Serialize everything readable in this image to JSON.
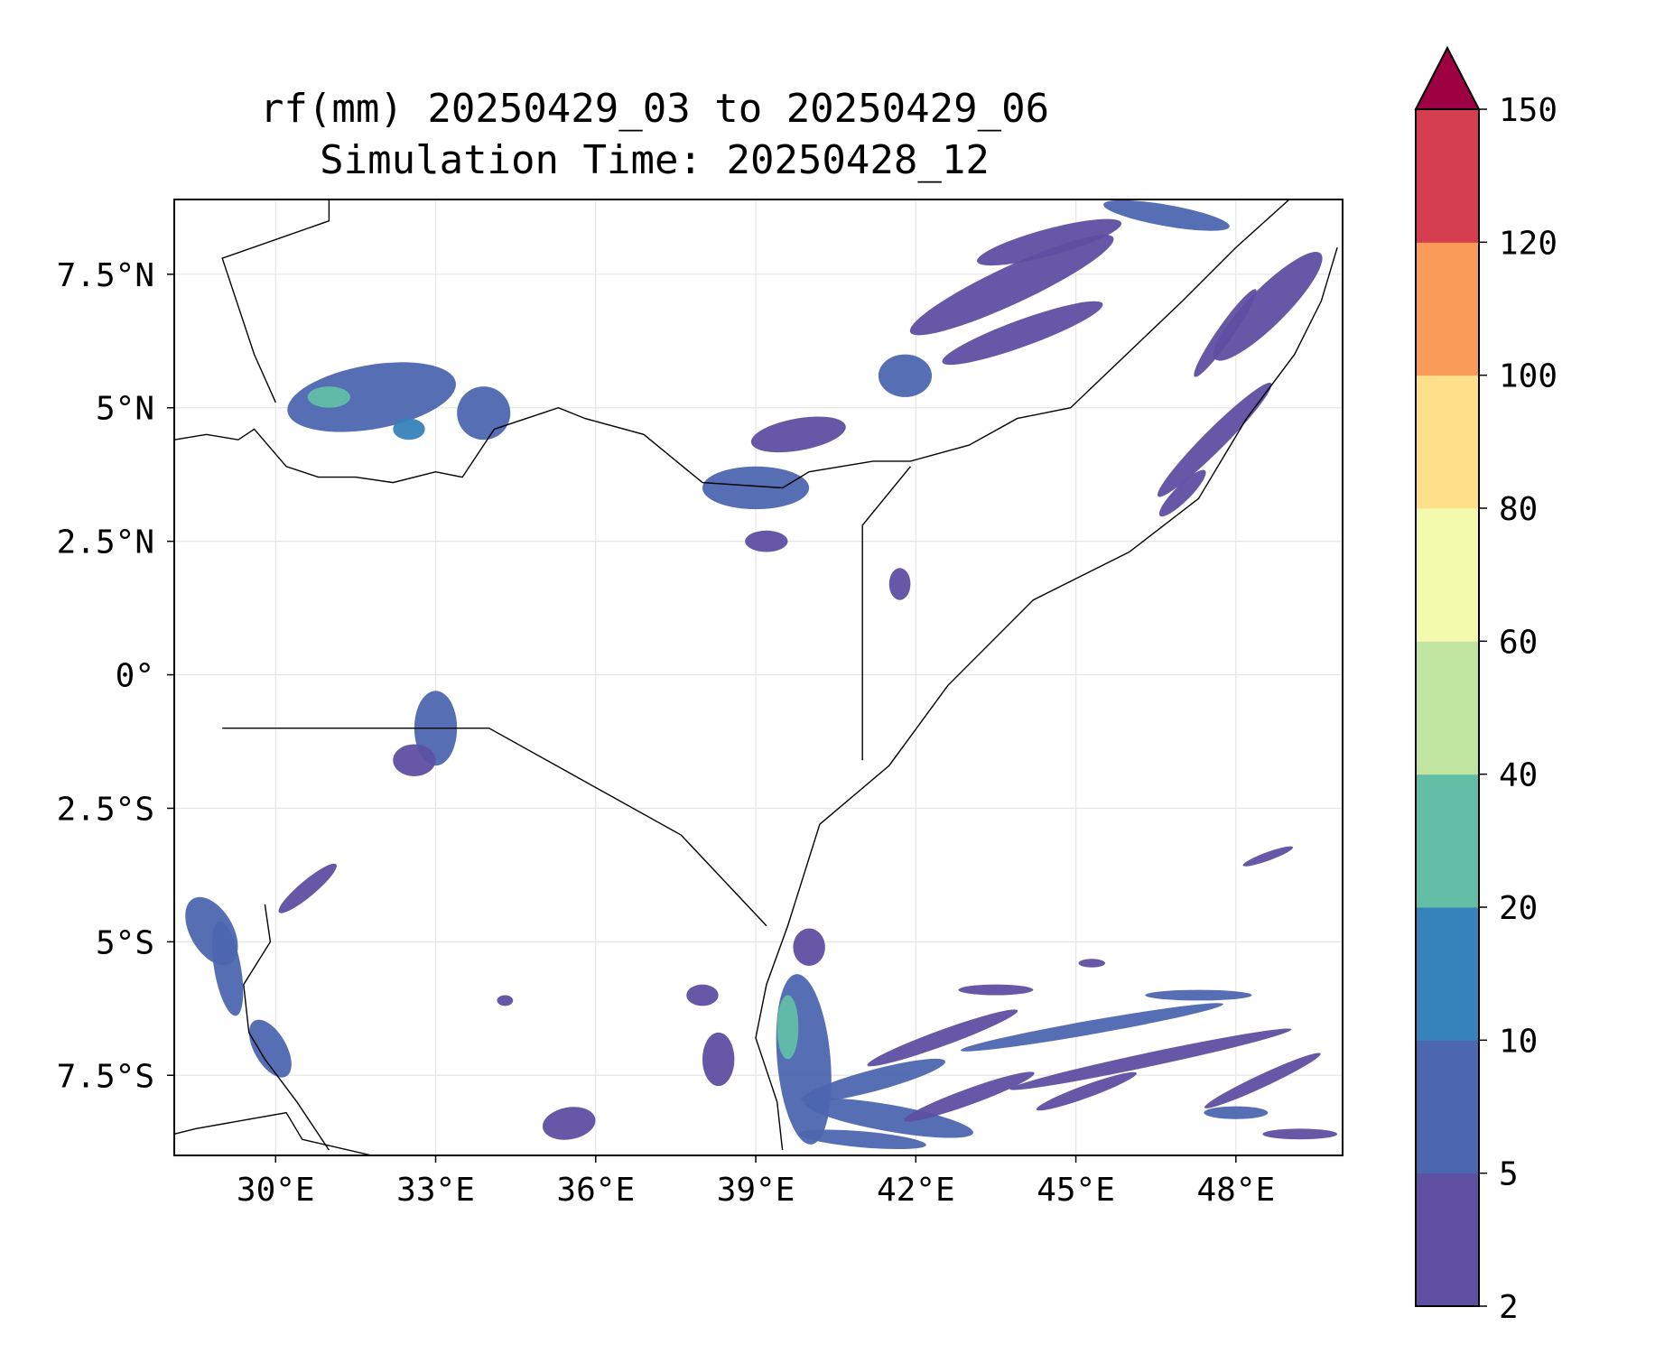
{
  "title": {
    "line1": "rf(mm) 20250429_03 to 20250429_06",
    "line2": "Simulation Time: 20250428_12"
  },
  "map": {
    "lon_range": [
      28.1,
      50.0
    ],
    "lat_range": [
      -9.0,
      8.9
    ],
    "x_ticks": [
      {
        "value": 30,
        "label": "30°E"
      },
      {
        "value": 33,
        "label": "33°E"
      },
      {
        "value": 36,
        "label": "36°E"
      },
      {
        "value": 39,
        "label": "39°E"
      },
      {
        "value": 42,
        "label": "42°E"
      },
      {
        "value": 45,
        "label": "45°E"
      },
      {
        "value": 48,
        "label": "48°E"
      }
    ],
    "y_ticks": [
      {
        "value": 7.5,
        "label": "7.5°N"
      },
      {
        "value": 5,
        "label": "5°N"
      },
      {
        "value": 2.5,
        "label": "2.5°N"
      },
      {
        "value": 0,
        "label": "0°"
      },
      {
        "value": -2.5,
        "label": "2.5°S"
      },
      {
        "value": -5,
        "label": "5°S"
      },
      {
        "value": -7.5,
        "label": "7.5°S"
      }
    ],
    "gridlines": true,
    "borders_color": "#000000"
  },
  "colorbar": {
    "extend": "max",
    "extend_color": "#9e0142",
    "levels": [
      {
        "label": "2",
        "color": "#5e4fa2"
      },
      {
        "label": "5",
        "color": "#4c66b0"
      },
      {
        "label": "10",
        "color": "#3682ba"
      },
      {
        "label": "20",
        "color": "#62bea6"
      },
      {
        "label": "40",
        "color": "#bfe5a0"
      },
      {
        "label": "60",
        "color": "#f4faad"
      },
      {
        "label": "80",
        "color": "#fee08b"
      },
      {
        "label": "100",
        "color": "#fa9c58"
      },
      {
        "label": "120",
        "color": "#d53e4f"
      },
      {
        "label": "150",
        "color": null
      }
    ]
  },
  "rain_cells": [
    {
      "lon": 31.8,
      "lat": 5.2,
      "rx": 1.6,
      "ry": 0.6,
      "rot": -10,
      "level": 1
    },
    {
      "lon": 31.0,
      "lat": 5.2,
      "rx": 0.4,
      "ry": 0.2,
      "rot": 0,
      "level": 3
    },
    {
      "lon": 32.5,
      "lat": 4.6,
      "rx": 0.3,
      "ry": 0.2,
      "rot": 0,
      "level": 2
    },
    {
      "lon": 33.9,
      "lat": 4.9,
      "rx": 0.5,
      "ry": 0.5,
      "rot": 0,
      "level": 1
    },
    {
      "lon": 33.0,
      "lat": -1.0,
      "rx": 0.4,
      "ry": 0.7,
      "rot": 0,
      "level": 1
    },
    {
      "lon": 32.6,
      "lat": -1.6,
      "rx": 0.4,
      "ry": 0.3,
      "rot": 0,
      "level": 0
    },
    {
      "lon": 39.0,
      "lat": 3.5,
      "rx": 1.0,
      "ry": 0.4,
      "rot": 0,
      "level": 1
    },
    {
      "lon": 39.2,
      "lat": 2.5,
      "rx": 0.4,
      "ry": 0.2,
      "rot": 0,
      "level": 0
    },
    {
      "lon": 39.8,
      "lat": 4.5,
      "rx": 0.9,
      "ry": 0.3,
      "rot": -10,
      "level": 0
    },
    {
      "lon": 41.8,
      "lat": 5.6,
      "rx": 0.5,
      "ry": 0.4,
      "rot": 0,
      "level": 1
    },
    {
      "lon": 41.7,
      "lat": 1.7,
      "rx": 0.2,
      "ry": 0.3,
      "rot": 0,
      "level": 0
    },
    {
      "lon": 43.8,
      "lat": 7.3,
      "rx": 2.1,
      "ry": 0.35,
      "rot": -25,
      "level": 0
    },
    {
      "lon": 44.0,
      "lat": 6.4,
      "rx": 1.6,
      "ry": 0.25,
      "rot": -20,
      "level": 0
    },
    {
      "lon": 44.5,
      "lat": 8.1,
      "rx": 1.4,
      "ry": 0.25,
      "rot": -15,
      "level": 0
    },
    {
      "lon": 46.7,
      "lat": 8.6,
      "rx": 1.2,
      "ry": 0.2,
      "rot": 10,
      "level": 1
    },
    {
      "lon": 48.6,
      "lat": 6.9,
      "rx": 1.4,
      "ry": 0.35,
      "rot": -45,
      "level": 0
    },
    {
      "lon": 47.8,
      "lat": 6.4,
      "rx": 1.0,
      "ry": 0.15,
      "rot": -55,
      "level": 0
    },
    {
      "lon": 47.6,
      "lat": 4.4,
      "rx": 1.5,
      "ry": 0.2,
      "rot": -45,
      "level": 0
    },
    {
      "lon": 47.0,
      "lat": 3.4,
      "rx": 0.6,
      "ry": 0.15,
      "rot": -45,
      "level": 0
    },
    {
      "lon": 28.8,
      "lat": -4.8,
      "rx": 0.7,
      "ry": 0.4,
      "rot": 60,
      "level": 1
    },
    {
      "lon": 29.1,
      "lat": -5.5,
      "rx": 0.9,
      "ry": 0.25,
      "rot": 80,
      "level": 1
    },
    {
      "lon": 29.9,
      "lat": -7.0,
      "rx": 0.3,
      "ry": 0.6,
      "rot": -30,
      "level": 1
    },
    {
      "lon": 30.6,
      "lat": -4.0,
      "rx": 0.7,
      "ry": 0.15,
      "rot": -40,
      "level": 0
    },
    {
      "lon": 35.5,
      "lat": -8.4,
      "rx": 0.5,
      "ry": 0.3,
      "rot": -10,
      "level": 0
    },
    {
      "lon": 34.3,
      "lat": -6.1,
      "rx": 0.15,
      "ry": 0.1,
      "rot": 0,
      "level": 0
    },
    {
      "lon": 38.3,
      "lat": -7.2,
      "rx": 0.3,
      "ry": 0.5,
      "rot": 0,
      "level": 0
    },
    {
      "lon": 38.0,
      "lat": -6.0,
      "rx": 0.3,
      "ry": 0.2,
      "rot": 0,
      "level": 0
    },
    {
      "lon": 39.9,
      "lat": -7.2,
      "rx": 0.5,
      "ry": 1.6,
      "rot": -5,
      "level": 1
    },
    {
      "lon": 39.6,
      "lat": -6.6,
      "rx": 0.2,
      "ry": 0.6,
      "rot": 0,
      "level": 3
    },
    {
      "lon": 41.2,
      "lat": -7.6,
      "rx": 1.4,
      "ry": 0.2,
      "rot": -15,
      "level": 1
    },
    {
      "lon": 41.5,
      "lat": -8.3,
      "rx": 1.6,
      "ry": 0.25,
      "rot": 10,
      "level": 1
    },
    {
      "lon": 42.5,
      "lat": -6.8,
      "rx": 1.5,
      "ry": 0.15,
      "rot": -20,
      "level": 0
    },
    {
      "lon": 43.0,
      "lat": -7.9,
      "rx": 1.3,
      "ry": 0.15,
      "rot": -20,
      "level": 0
    },
    {
      "lon": 41.0,
      "lat": -8.7,
      "rx": 1.2,
      "ry": 0.15,
      "rot": 5,
      "level": 1
    },
    {
      "lon": 45.3,
      "lat": -6.6,
      "rx": 2.5,
      "ry": 0.13,
      "rot": -10,
      "level": 1
    },
    {
      "lon": 46.4,
      "lat": -7.2,
      "rx": 2.7,
      "ry": 0.13,
      "rot": -12,
      "level": 0
    },
    {
      "lon": 47.3,
      "lat": -6.0,
      "rx": 1.0,
      "ry": 0.1,
      "rot": 0,
      "level": 1
    },
    {
      "lon": 45.2,
      "lat": -7.8,
      "rx": 1.0,
      "ry": 0.12,
      "rot": -20,
      "level": 0
    },
    {
      "lon": 48.5,
      "lat": -7.6,
      "rx": 1.2,
      "ry": 0.12,
      "rot": -25,
      "level": 0
    },
    {
      "lon": 48.0,
      "lat": -8.2,
      "rx": 0.6,
      "ry": 0.12,
      "rot": 0,
      "level": 1
    },
    {
      "lon": 49.2,
      "lat": -8.6,
      "rx": 0.7,
      "ry": 0.1,
      "rot": 0,
      "level": 0
    },
    {
      "lon": 48.6,
      "lat": -3.4,
      "rx": 0.5,
      "ry": 0.08,
      "rot": -20,
      "level": 0
    },
    {
      "lon": 45.3,
      "lat": -5.4,
      "rx": 0.25,
      "ry": 0.08,
      "rot": 0,
      "level": 0
    },
    {
      "lon": 43.5,
      "lat": -5.9,
      "rx": 0.7,
      "ry": 0.1,
      "rot": 0,
      "level": 0
    },
    {
      "lon": 40.0,
      "lat": -5.1,
      "rx": 0.3,
      "ry": 0.35,
      "rot": 0,
      "level": 0
    }
  ],
  "land_outlines": [
    [
      [
        28.1,
        4.4
      ],
      [
        28.7,
        4.5
      ],
      [
        29.3,
        4.4
      ],
      [
        29.6,
        4.6
      ],
      [
        30.2,
        3.9
      ],
      [
        30.8,
        3.7
      ],
      [
        31.5,
        3.7
      ],
      [
        32.2,
        3.6
      ],
      [
        33.0,
        3.8
      ],
      [
        33.5,
        3.7
      ],
      [
        34.1,
        4.6
      ],
      [
        35.3,
        5.0
      ],
      [
        35.8,
        4.8
      ],
      [
        36.9,
        4.5
      ],
      [
        38.0,
        3.6
      ],
      [
        39.5,
        3.5
      ],
      [
        40.0,
        3.8
      ],
      [
        41.2,
        4.0
      ],
      [
        41.9,
        4.0
      ],
      [
        43.0,
        4.3
      ],
      [
        43.9,
        4.8
      ],
      [
        44.9,
        5.0
      ],
      [
        47.0,
        7.0
      ],
      [
        48.0,
        8.0
      ],
      [
        49.0,
        8.9
      ]
    ],
    [
      [
        29.0,
        -1.0
      ],
      [
        30.0,
        -1.0
      ],
      [
        34.0,
        -1.0
      ],
      [
        37.6,
        -3.0
      ],
      [
        39.2,
        -4.7
      ]
    ],
    [
      [
        41.0,
        -1.6
      ],
      [
        41.0,
        -0.9
      ],
      [
        41.0,
        2.8
      ],
      [
        41.9,
        3.9
      ]
    ],
    [
      [
        28.1,
        -8.6
      ],
      [
        28.5,
        -8.5
      ],
      [
        30.2,
        -8.2
      ],
      [
        30.5,
        -8.7
      ],
      [
        31.8,
        -9.0
      ]
    ],
    [
      [
        29.8,
        -4.3
      ],
      [
        29.9,
        -5.0
      ],
      [
        29.4,
        -5.8
      ],
      [
        29.5,
        -6.7
      ],
      [
        29.8,
        -7.2
      ],
      [
        30.4,
        -8.0
      ],
      [
        31.0,
        -8.9
      ]
    ],
    [
      [
        49.9,
        8.0
      ],
      [
        49.6,
        7.0
      ],
      [
        49.1,
        6.0
      ],
      [
        48.2,
        4.8
      ],
      [
        47.3,
        3.3
      ],
      [
        46.0,
        2.3
      ],
      [
        44.2,
        1.4
      ],
      [
        42.6,
        -0.2
      ],
      [
        41.5,
        -1.7
      ],
      [
        40.2,
        -2.8
      ],
      [
        39.6,
        -4.7
      ],
      [
        39.2,
        -5.8
      ],
      [
        39.0,
        -6.8
      ],
      [
        39.4,
        -8.0
      ],
      [
        39.5,
        -8.9
      ]
    ],
    [
      [
        31.0,
        8.9
      ],
      [
        31.0,
        8.5
      ],
      [
        29.0,
        7.8
      ],
      [
        29.6,
        6.0
      ],
      [
        30.0,
        5.1
      ]
    ]
  ]
}
